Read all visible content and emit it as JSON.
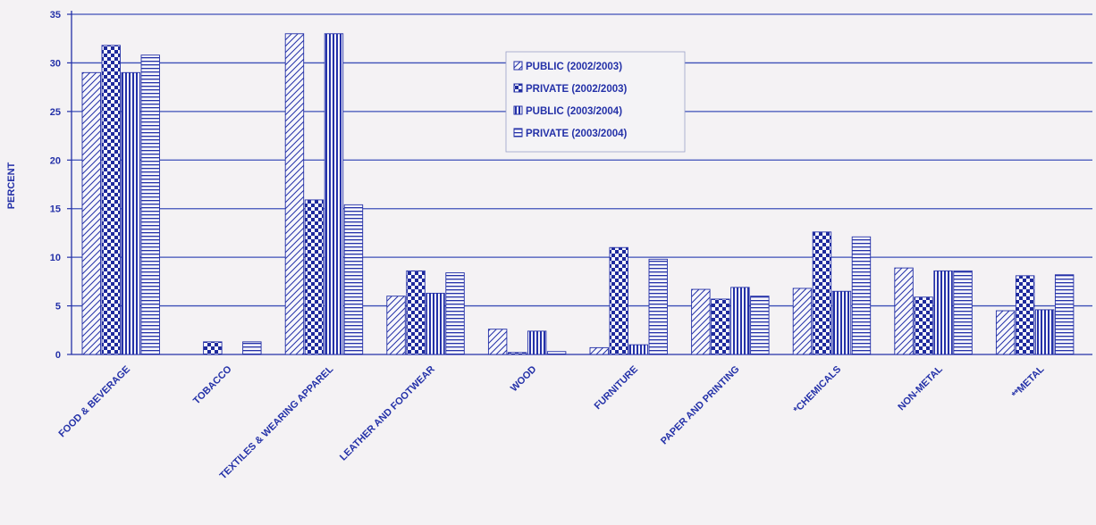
{
  "chart_data": {
    "type": "bar",
    "title": "",
    "xlabel": "",
    "ylabel": "PERCENT",
    "ylim": [
      0,
      35
    ],
    "yticks": [
      0,
      5,
      10,
      15,
      20,
      25,
      30,
      35
    ],
    "grid": true,
    "legend_position": "top-center",
    "categories": [
      "FOOD & BEVERAGE",
      "TOBACCO",
      "TEXTILES & WEARING APPAREL",
      "LEATHER AND FOOTWEAR",
      "WOOD",
      "FURNITURE",
      "PAPER AND PRINTING",
      "*CHEMICALS",
      "NON-METAL",
      "**METAL"
    ],
    "series": [
      {
        "name": "PUBLIC (2002/2003)",
        "pattern": "diagonal",
        "values": [
          29.0,
          0.0,
          33.0,
          6.0,
          2.6,
          0.7,
          6.7,
          6.8,
          8.9,
          4.5
        ]
      },
      {
        "name": "PRIVATE (2002/2003)",
        "pattern": "checker",
        "values": [
          31.8,
          1.3,
          15.9,
          8.6,
          0.2,
          11.0,
          5.7,
          12.6,
          5.9,
          8.1
        ]
      },
      {
        "name": "PUBLIC (2003/2004)",
        "pattern": "vertical",
        "values": [
          29.0,
          0.0,
          33.0,
          6.3,
          2.4,
          1.0,
          6.9,
          6.5,
          8.6,
          4.6
        ]
      },
      {
        "name": "PRIVATE (2003/2004)",
        "pattern": "horizontal",
        "values": [
          30.8,
          1.3,
          15.4,
          8.4,
          0.3,
          9.8,
          6.0,
          12.1,
          8.6,
          8.2
        ]
      }
    ],
    "colors": {
      "ink": "#2431a8",
      "grid": "#3d4fb8",
      "background": "#f4f2f4"
    }
  }
}
